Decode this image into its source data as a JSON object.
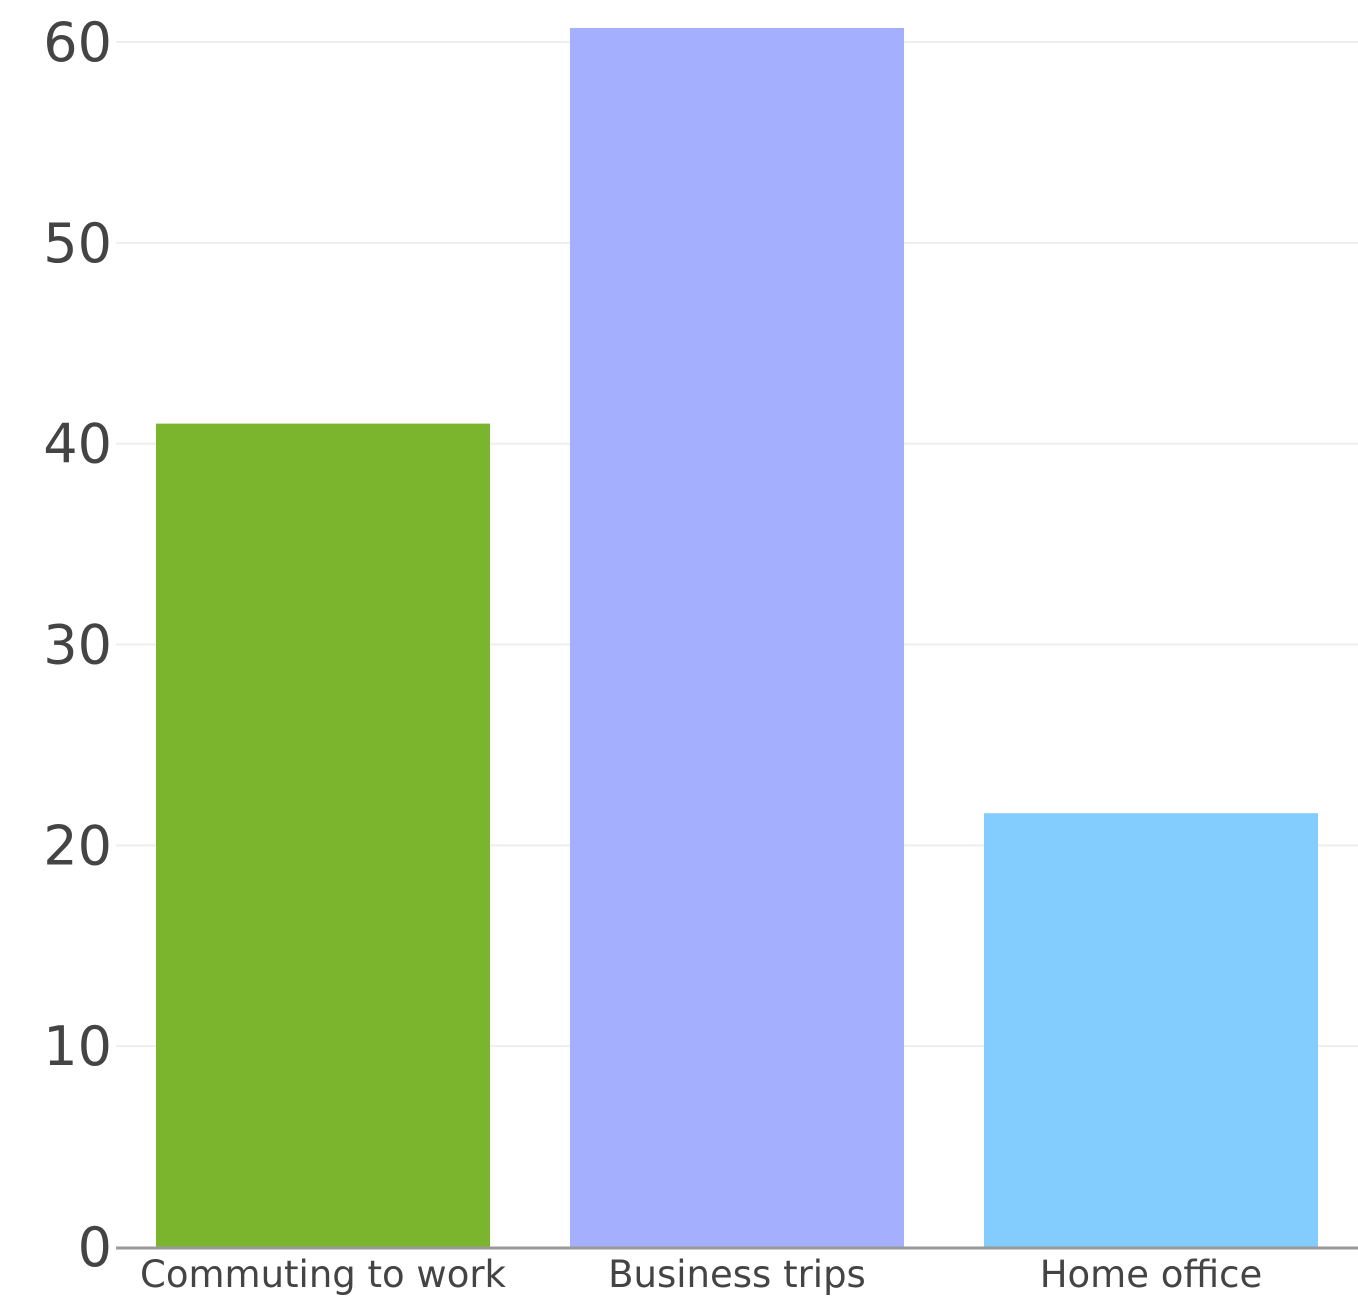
{
  "chart_data": {
    "type": "bar",
    "categories": [
      "Commuting to work",
      "Business trips",
      "Home office"
    ],
    "values": [
      41,
      60.7,
      21.6
    ],
    "colors": [
      "#7bb52e",
      "#a4b0fe",
      "#82cdfd"
    ],
    "ylim": [
      0,
      60.7
    ],
    "yticks": [
      0,
      10,
      20,
      30,
      40,
      50,
      60
    ],
    "ytick_labels": [
      "0",
      "10",
      "20",
      "30",
      "40",
      "50",
      "60"
    ],
    "grid": true,
    "grid_color": "#eeeeee",
    "axis_color": "#999999",
    "text_color": "#444444",
    "title": "",
    "xlabel": "",
    "ylabel": ""
  }
}
